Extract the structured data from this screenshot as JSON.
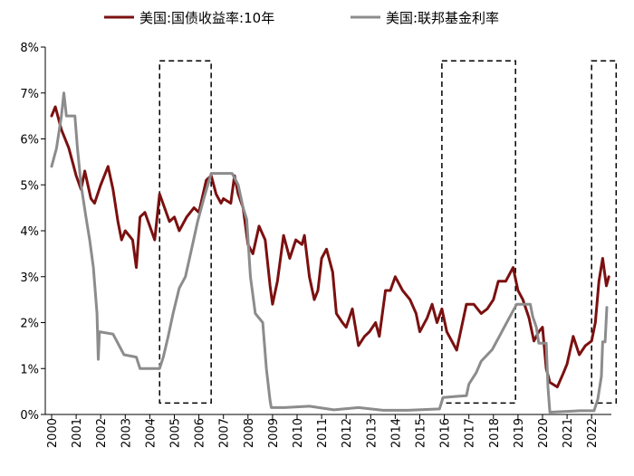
{
  "chart_data": {
    "type": "line",
    "title": "",
    "xlabel": "",
    "ylabel": "",
    "ylim": [
      0,
      8
    ],
    "xlim": [
      2000,
      2023
    ],
    "y_ticks": [
      "0%",
      "1%",
      "2%",
      "3%",
      "4%",
      "5%",
      "6%",
      "7%",
      "8%"
    ],
    "x_ticks": [
      "2000",
      "2001",
      "2002",
      "2003",
      "2004",
      "2005",
      "2006",
      "2007",
      "2008",
      "2009",
      "2010",
      "2011",
      "2012",
      "2013",
      "2014",
      "2015",
      "2016",
      "2017",
      "2018",
      "2019",
      "2020",
      "2021",
      "2022"
    ],
    "grid": false,
    "legend_position": "top",
    "series": [
      {
        "name": "美国:国债收益率:10年",
        "color": "#7b1010",
        "points": [
          [
            2000.0,
            6.5
          ],
          [
            2000.15,
            6.7
          ],
          [
            2000.4,
            6.2
          ],
          [
            2000.7,
            5.8
          ],
          [
            2001.0,
            5.2
          ],
          [
            2001.2,
            4.9
          ],
          [
            2001.35,
            5.3
          ],
          [
            2001.6,
            4.7
          ],
          [
            2001.75,
            4.6
          ],
          [
            2002.0,
            5.0
          ],
          [
            2002.3,
            5.4
          ],
          [
            2002.5,
            4.9
          ],
          [
            2002.7,
            4.2
          ],
          [
            2002.85,
            3.8
          ],
          [
            2003.0,
            4.0
          ],
          [
            2003.3,
            3.8
          ],
          [
            2003.45,
            3.2
          ],
          [
            2003.6,
            4.3
          ],
          [
            2003.8,
            4.4
          ],
          [
            2004.0,
            4.1
          ],
          [
            2004.2,
            3.8
          ],
          [
            2004.4,
            4.8
          ],
          [
            2004.6,
            4.5
          ],
          [
            2004.8,
            4.2
          ],
          [
            2005.0,
            4.3
          ],
          [
            2005.2,
            4.0
          ],
          [
            2005.5,
            4.3
          ],
          [
            2005.8,
            4.5
          ],
          [
            2006.0,
            4.4
          ],
          [
            2006.3,
            5.1
          ],
          [
            2006.5,
            5.2
          ],
          [
            2006.7,
            4.8
          ],
          [
            2006.9,
            4.6
          ],
          [
            2007.0,
            4.7
          ],
          [
            2007.3,
            4.6
          ],
          [
            2007.45,
            5.2
          ],
          [
            2007.6,
            4.8
          ],
          [
            2007.8,
            4.5
          ],
          [
            2008.0,
            3.7
          ],
          [
            2008.2,
            3.5
          ],
          [
            2008.45,
            4.1
          ],
          [
            2008.7,
            3.8
          ],
          [
            2008.9,
            2.8
          ],
          [
            2009.0,
            2.4
          ],
          [
            2009.2,
            2.9
          ],
          [
            2009.45,
            3.9
          ],
          [
            2009.7,
            3.4
          ],
          [
            2009.95,
            3.8
          ],
          [
            2010.2,
            3.7
          ],
          [
            2010.3,
            3.9
          ],
          [
            2010.5,
            3.0
          ],
          [
            2010.7,
            2.5
          ],
          [
            2010.85,
            2.7
          ],
          [
            2011.0,
            3.4
          ],
          [
            2011.2,
            3.6
          ],
          [
            2011.45,
            3.1
          ],
          [
            2011.6,
            2.2
          ],
          [
            2011.85,
            2.0
          ],
          [
            2012.0,
            1.9
          ],
          [
            2012.25,
            2.3
          ],
          [
            2012.5,
            1.5
          ],
          [
            2012.75,
            1.7
          ],
          [
            2012.95,
            1.8
          ],
          [
            2013.2,
            2.0
          ],
          [
            2013.35,
            1.7
          ],
          [
            2013.6,
            2.7
          ],
          [
            2013.8,
            2.7
          ],
          [
            2014.0,
            3.0
          ],
          [
            2014.3,
            2.7
          ],
          [
            2014.6,
            2.5
          ],
          [
            2014.85,
            2.2
          ],
          [
            2015.0,
            1.8
          ],
          [
            2015.3,
            2.1
          ],
          [
            2015.5,
            2.4
          ],
          [
            2015.7,
            2.0
          ],
          [
            2015.9,
            2.3
          ],
          [
            2016.1,
            1.8
          ],
          [
            2016.5,
            1.4
          ],
          [
            2016.9,
            2.4
          ],
          [
            2017.2,
            2.4
          ],
          [
            2017.5,
            2.2
          ],
          [
            2017.75,
            2.3
          ],
          [
            2018.0,
            2.5
          ],
          [
            2018.2,
            2.9
          ],
          [
            2018.5,
            2.9
          ],
          [
            2018.8,
            3.2
          ],
          [
            2019.0,
            2.7
          ],
          [
            2019.2,
            2.5
          ],
          [
            2019.45,
            2.1
          ],
          [
            2019.65,
            1.6
          ],
          [
            2019.85,
            1.8
          ],
          [
            2020.0,
            1.9
          ],
          [
            2020.15,
            1.0
          ],
          [
            2020.3,
            0.7
          ],
          [
            2020.6,
            0.6
          ],
          [
            2020.85,
            0.9
          ],
          [
            2021.0,
            1.1
          ],
          [
            2021.25,
            1.7
          ],
          [
            2021.5,
            1.3
          ],
          [
            2021.75,
            1.5
          ],
          [
            2022.0,
            1.6
          ],
          [
            2022.15,
            2.0
          ],
          [
            2022.3,
            2.9
          ],
          [
            2022.45,
            3.4
          ],
          [
            2022.6,
            2.8
          ],
          [
            2022.7,
            3.0
          ]
        ]
      },
      {
        "name": "美国:联邦基金利率",
        "color": "#8c8c8c",
        "points": [
          [
            2000.0,
            5.4
          ],
          [
            2000.2,
            5.8
          ],
          [
            2000.4,
            6.5
          ],
          [
            2000.5,
            7.0
          ],
          [
            2000.6,
            6.5
          ],
          [
            2000.95,
            6.5
          ],
          [
            2001.05,
            5.8
          ],
          [
            2001.2,
            5.0
          ],
          [
            2001.4,
            4.3
          ],
          [
            2001.55,
            3.8
          ],
          [
            2001.7,
            3.2
          ],
          [
            2001.85,
            2.2
          ],
          [
            2001.9,
            1.2
          ],
          [
            2001.95,
            1.8
          ],
          [
            2002.5,
            1.75
          ],
          [
            2002.95,
            1.3
          ],
          [
            2003.45,
            1.25
          ],
          [
            2003.6,
            1.0
          ],
          [
            2004.4,
            1.0
          ],
          [
            2004.55,
            1.25
          ],
          [
            2004.75,
            1.7
          ],
          [
            2004.95,
            2.2
          ],
          [
            2005.2,
            2.75
          ],
          [
            2005.45,
            3.0
          ],
          [
            2005.7,
            3.6
          ],
          [
            2005.95,
            4.2
          ],
          [
            2006.2,
            4.7
          ],
          [
            2006.5,
            5.25
          ],
          [
            2006.8,
            5.25
          ],
          [
            2007.35,
            5.25
          ],
          [
            2007.6,
            5.0
          ],
          [
            2007.8,
            4.5
          ],
          [
            2007.95,
            4.25
          ],
          [
            2008.1,
            3.0
          ],
          [
            2008.3,
            2.2
          ],
          [
            2008.6,
            2.0
          ],
          [
            2008.75,
            1.0
          ],
          [
            2008.9,
            0.3
          ],
          [
            2008.95,
            0.15
          ],
          [
            2009.5,
            0.15
          ],
          [
            2010.5,
            0.18
          ],
          [
            2011.5,
            0.1
          ],
          [
            2012.5,
            0.15
          ],
          [
            2013.5,
            0.09
          ],
          [
            2014.5,
            0.09
          ],
          [
            2015.8,
            0.12
          ],
          [
            2015.95,
            0.37
          ],
          [
            2016.9,
            0.41
          ],
          [
            2017.0,
            0.66
          ],
          [
            2017.3,
            0.91
          ],
          [
            2017.5,
            1.16
          ],
          [
            2017.95,
            1.41
          ],
          [
            2018.2,
            1.66
          ],
          [
            2018.45,
            1.91
          ],
          [
            2018.7,
            2.16
          ],
          [
            2018.95,
            2.4
          ],
          [
            2019.5,
            2.4
          ],
          [
            2019.6,
            2.13
          ],
          [
            2019.75,
            1.9
          ],
          [
            2019.85,
            1.55
          ],
          [
            2020.15,
            1.55
          ],
          [
            2020.22,
            0.6
          ],
          [
            2020.3,
            0.05
          ],
          [
            2021.5,
            0.08
          ],
          [
            2022.1,
            0.08
          ],
          [
            2022.25,
            0.33
          ],
          [
            2022.4,
            0.83
          ],
          [
            2022.45,
            1.58
          ],
          [
            2022.55,
            1.58
          ],
          [
            2022.62,
            2.33
          ]
        ]
      }
    ],
    "highlight_periods": [
      {
        "x0": 2004.4,
        "x1": 2006.5,
        "y0": 0.25,
        "y1": 7.7
      },
      {
        "x0": 2015.9,
        "x1": 2018.9,
        "y0": 0.25,
        "y1": 7.7
      },
      {
        "x0": 2022.0,
        "x1": 2023.0,
        "y0": 0.25,
        "y1": 7.7
      }
    ]
  }
}
